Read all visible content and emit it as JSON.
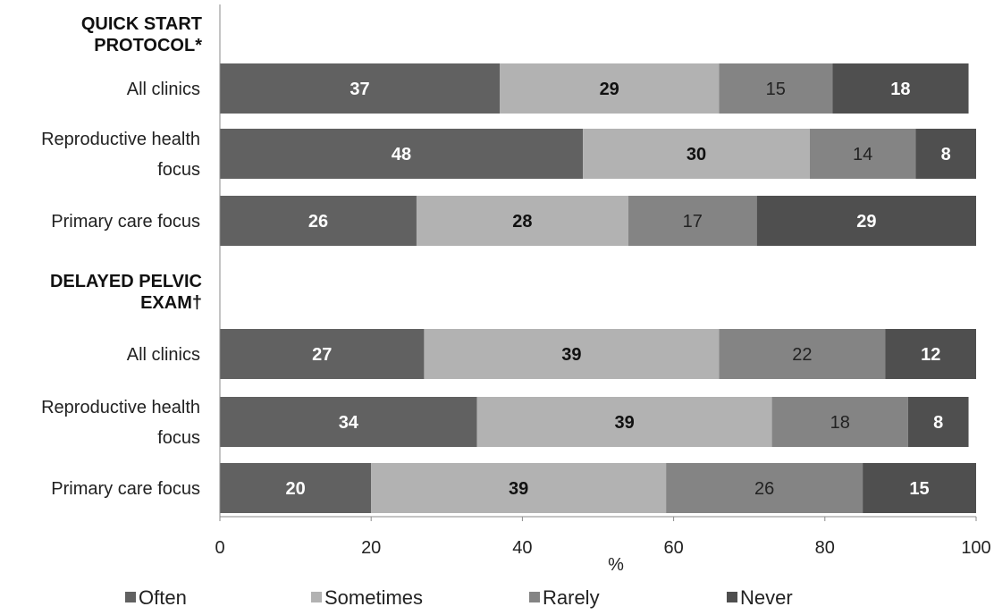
{
  "chart_data": {
    "type": "bar",
    "orientation": "horizontal",
    "stacked": true,
    "xlabel": "%",
    "xlim": [
      0,
      100
    ],
    "xticks": [
      "0",
      "20",
      "40",
      "60",
      "80",
      "100"
    ],
    "legend_position": "bottom",
    "series": [
      {
        "name": "Often",
        "color": "#616161",
        "label_color": "#ffffff",
        "label_bold": true
      },
      {
        "name": "Sometimes",
        "color": "#b2b2b2",
        "label_color": "#111111",
        "label_bold": true
      },
      {
        "name": "Rarely",
        "color": "#848484",
        "label_color": "#222222",
        "label_bold": false
      },
      {
        "name": "Never",
        "color": "#4f4f4f",
        "label_color": "#ffffff",
        "label_bold": true
      }
    ],
    "groups": [
      {
        "heading": [
          "QUICK START",
          "PROTOCOL*"
        ],
        "rows": [
          {
            "label": [
              "All clinics"
            ],
            "values": [
              37,
              29,
              15,
              18
            ]
          },
          {
            "label": [
              "Reproductive health",
              "focus"
            ],
            "values": [
              48,
              30,
              14,
              8
            ]
          },
          {
            "label": [
              "Primary care focus"
            ],
            "values": [
              26,
              28,
              17,
              29
            ]
          }
        ]
      },
      {
        "heading": [
          "DELAYED PELVIC",
          "EXAM†"
        ],
        "rows": [
          {
            "label": [
              "All clinics"
            ],
            "values": [
              27,
              39,
              22,
              12
            ]
          },
          {
            "label": [
              "Reproductive health",
              "focus"
            ],
            "values": [
              34,
              39,
              18,
              8
            ]
          },
          {
            "label": [
              "Primary care focus"
            ],
            "values": [
              20,
              39,
              26,
              15
            ]
          }
        ]
      }
    ]
  }
}
